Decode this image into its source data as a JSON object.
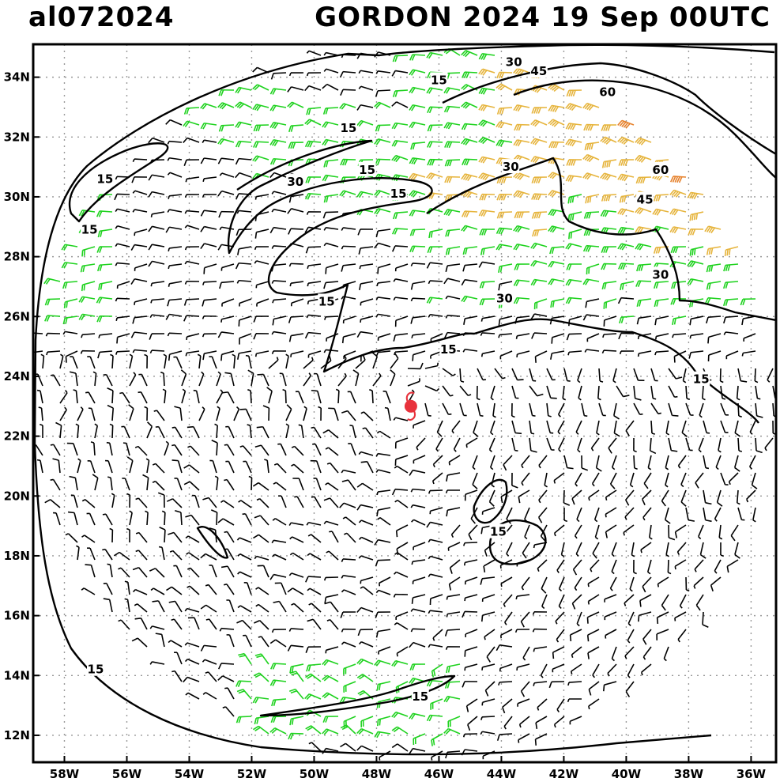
{
  "header": {
    "storm_id": "al072024",
    "title": "GORDON 2024 19 Sep 00UTC"
  },
  "axes": {
    "lat_labels": [
      "12N",
      "14N",
      "16N",
      "18N",
      "20N",
      "22N",
      "24N",
      "26N",
      "28N",
      "30N",
      "32N",
      "34N"
    ],
    "lon_labels": [
      "58W",
      "56W",
      "54W",
      "52W",
      "50W",
      "48W",
      "46W",
      "44W",
      "42W",
      "40W",
      "38W",
      "36W"
    ],
    "lat_range": [
      11.1,
      35.1
    ],
    "lon_range": [
      -59.0,
      -35.2
    ],
    "grid": "dotted"
  },
  "storm_center": {
    "lat": 23.0,
    "lon": -46.9,
    "color": "#e8323c"
  },
  "contours": [
    {
      "label": "15",
      "lat": 33.9,
      "lon": -46.0
    },
    {
      "label": "30",
      "lat": 34.5,
      "lon": -43.6
    },
    {
      "label": "45",
      "lat": 34.2,
      "lon": -42.8
    },
    {
      "label": "60",
      "lat": 33.5,
      "lon": -40.6
    },
    {
      "label": "15",
      "lat": 32.3,
      "lon": -48.9
    },
    {
      "label": "30",
      "lat": 31.0,
      "lon": -43.7
    },
    {
      "label": "60",
      "lat": 30.9,
      "lon": -38.9
    },
    {
      "label": "15",
      "lat": 30.9,
      "lon": -48.3
    },
    {
      "label": "30",
      "lat": 30.5,
      "lon": -50.6
    },
    {
      "label": "15",
      "lat": 30.1,
      "lon": -47.3
    },
    {
      "label": "15",
      "lat": 30.6,
      "lon": -56.7
    },
    {
      "label": "45",
      "lat": 29.9,
      "lon": -39.4
    },
    {
      "label": "15",
      "lat": 28.9,
      "lon": -57.2
    },
    {
      "label": "30",
      "lat": 27.4,
      "lon": -38.9
    },
    {
      "label": "30",
      "lat": 26.6,
      "lon": -43.9
    },
    {
      "label": "15",
      "lat": 26.5,
      "lon": -49.6
    },
    {
      "label": "15",
      "lat": 24.9,
      "lon": -45.7
    },
    {
      "label": "15",
      "lat": 23.9,
      "lon": -37.6
    },
    {
      "label": "15",
      "lat": 18.8,
      "lon": -44.1
    },
    {
      "label": "15",
      "lat": 14.2,
      "lon": -57.0
    },
    {
      "label": "15",
      "lat": 13.3,
      "lon": -46.6
    }
  ],
  "wind_colors": {
    "calm": "#000000",
    "15_30kt": "#1ed21e",
    "30_45kt": "#e6b43c",
    "45_60kt": "#e6822d",
    "60_plus": "#f04646",
    "peak": "#aaaaaa"
  }
}
